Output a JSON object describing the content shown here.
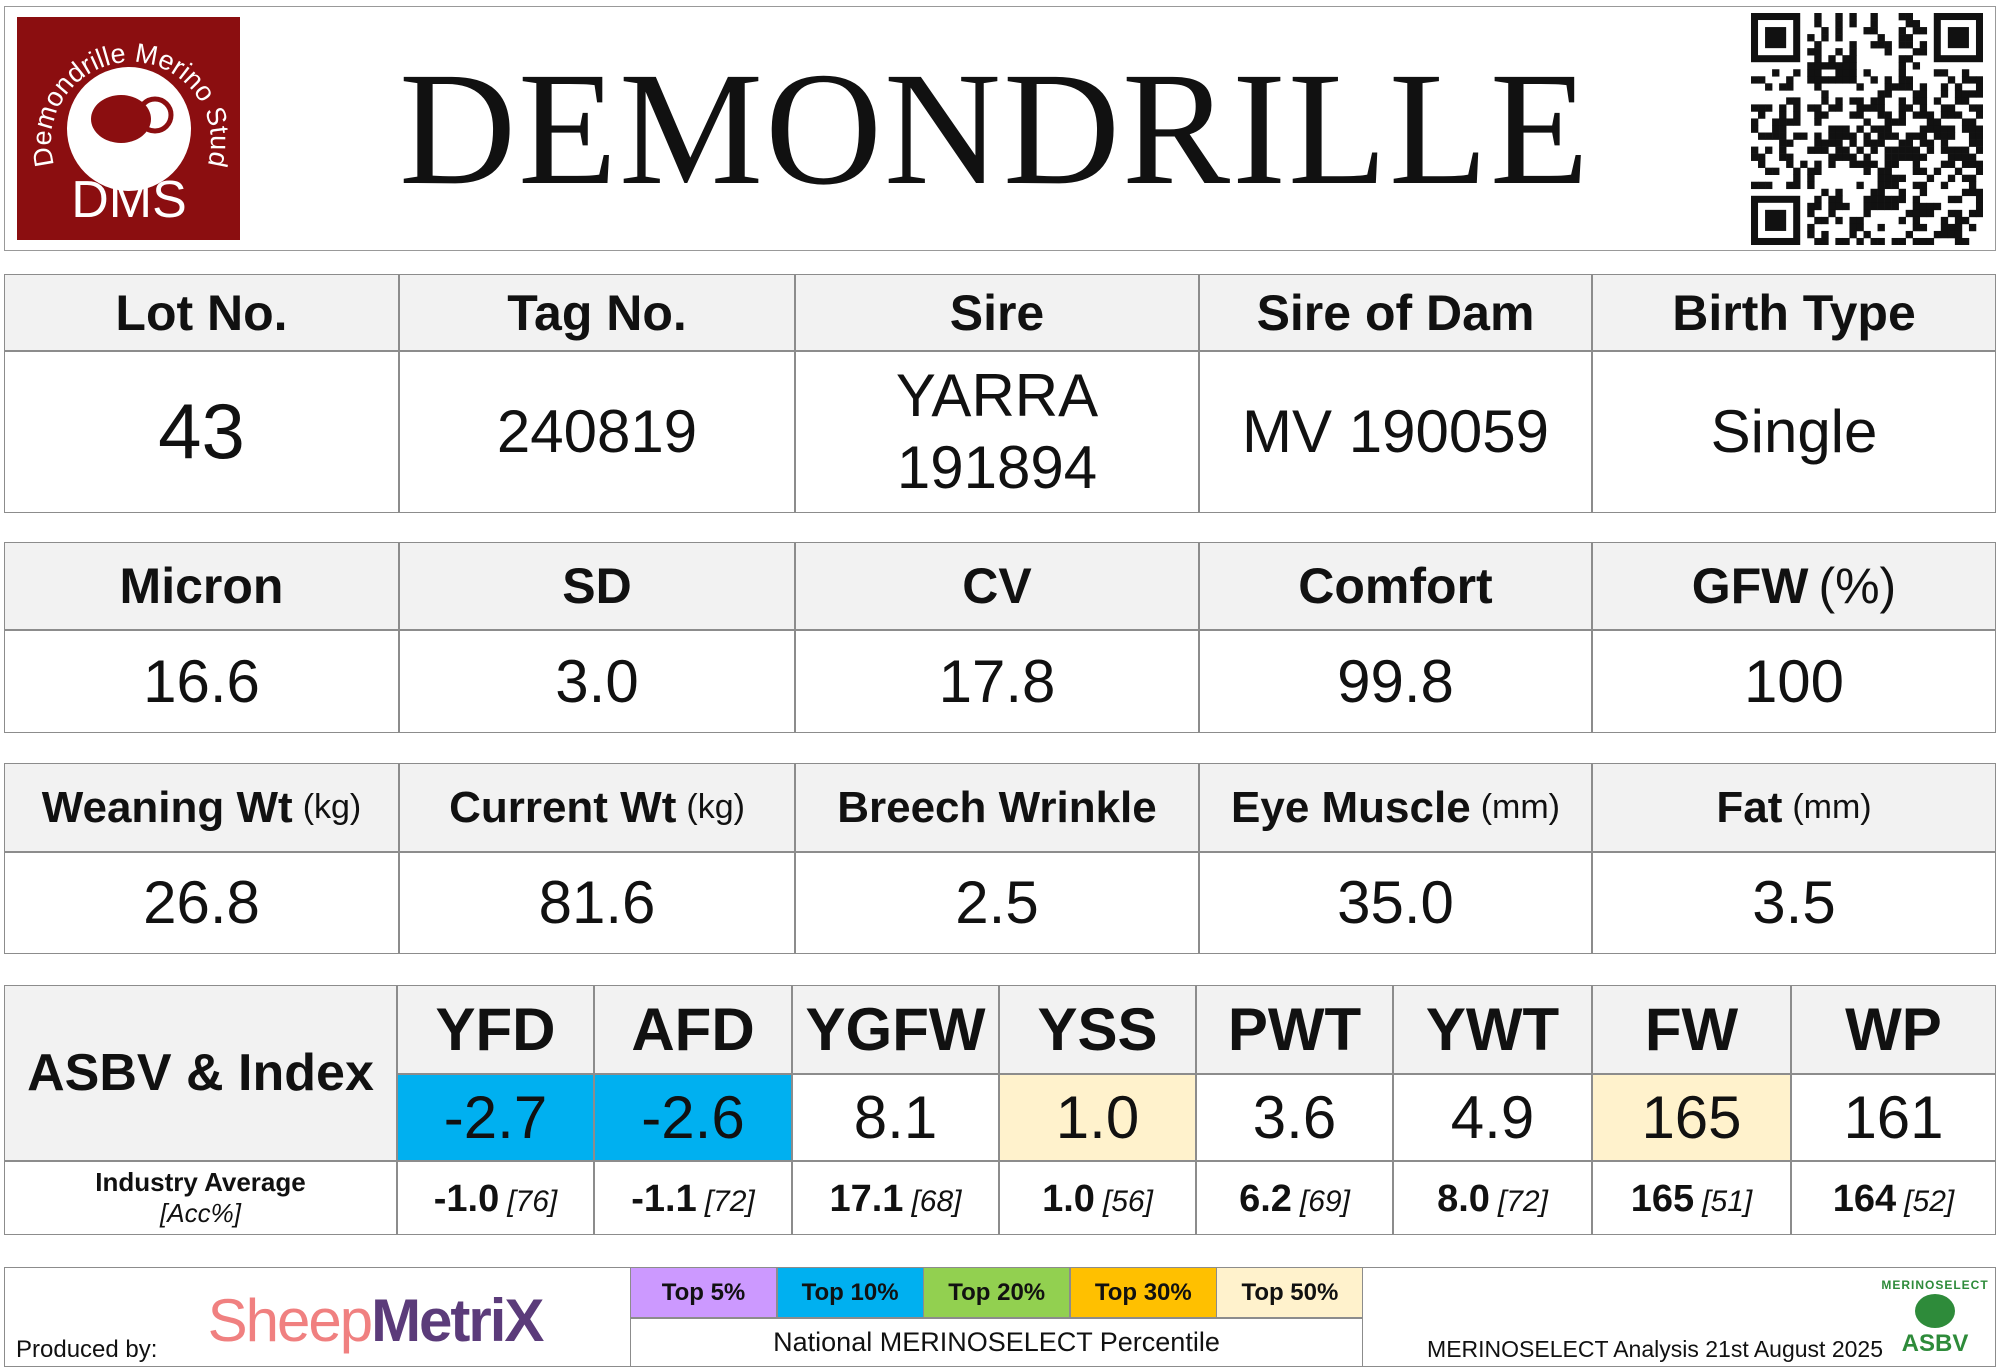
{
  "header": {
    "title": "DEMONDRILLE",
    "logo": {
      "arc": "Demondrille Merino Stud",
      "initials": "DMS"
    }
  },
  "tables": [
    {
      "headers": [
        "Lot No.",
        "Tag No.",
        "Sire",
        "Sire of Dam",
        "Birth Type"
      ],
      "values": [
        "43",
        "240819",
        [
          "YARRA",
          "191894"
        ],
        "MV 190059",
        "Single"
      ]
    },
    {
      "headers": [
        "Micron",
        "SD",
        "CV",
        "Comfort",
        {
          "name": "GFW",
          "unit": "(%)"
        }
      ],
      "values": [
        "16.6",
        "3.0",
        "17.8",
        "99.8",
        "100"
      ]
    },
    {
      "headers": [
        {
          "name": "Weaning Wt",
          "unit": "(kg)"
        },
        {
          "name": "Current Wt",
          "unit": "(kg)"
        },
        "Breech Wrinkle",
        {
          "name": "Eye Muscle",
          "unit": "(mm)"
        },
        {
          "name": "Fat",
          "unit": "(mm)"
        }
      ],
      "values": [
        "26.8",
        "81.6",
        "2.5",
        "35.0",
        "3.5"
      ]
    }
  ],
  "asbv": {
    "label": "ASBV & Index",
    "average_label": "Industry Average",
    "acc_label": "[Acc%]",
    "traits": [
      "YFD",
      "AFD",
      "YGFW",
      "YSS",
      "PWT",
      "YWT",
      "FW",
      "WP"
    ],
    "values": [
      "-2.7",
      "-2.6",
      "8.1",
      "1.0",
      "3.6",
      "4.9",
      "165",
      "161"
    ],
    "colors": [
      "#00b0f0",
      "#00b0f0",
      null,
      "#fff2cc",
      null,
      null,
      "#fff2cc",
      null
    ],
    "averages": [
      {
        "value": "-1.0",
        "acc": "[76]"
      },
      {
        "value": "-1.1",
        "acc": "[72]"
      },
      {
        "value": "17.1",
        "acc": "[68]"
      },
      {
        "value": "1.0",
        "acc": "[56]"
      },
      {
        "value": "6.2",
        "acc": "[69]"
      },
      {
        "value": "8.0",
        "acc": "[72]"
      },
      {
        "value": "165",
        "acc": "[51]"
      },
      {
        "value": "164",
        "acc": "[52]"
      }
    ]
  },
  "footer": {
    "produced_by": "Produced by:",
    "brand": {
      "part1": "Sheep",
      "part2": "MetriX"
    },
    "legend": [
      {
        "label": "Top 5%",
        "color": "#cc99ff"
      },
      {
        "label": "Top 10%",
        "color": "#00b0f0"
      },
      {
        "label": "Top 20%",
        "color": "#92d050"
      },
      {
        "label": "Top 30%",
        "color": "#ffc000"
      },
      {
        "label": "Top 50%",
        "color": "#fff2cc"
      }
    ],
    "legend_caption": "National MERINOSELECT Percentile",
    "analysis": "MERINOSELECT Analysis 21st August 2025",
    "badge": {
      "arc": "MERINOSELECT",
      "text": "ASBV"
    }
  }
}
